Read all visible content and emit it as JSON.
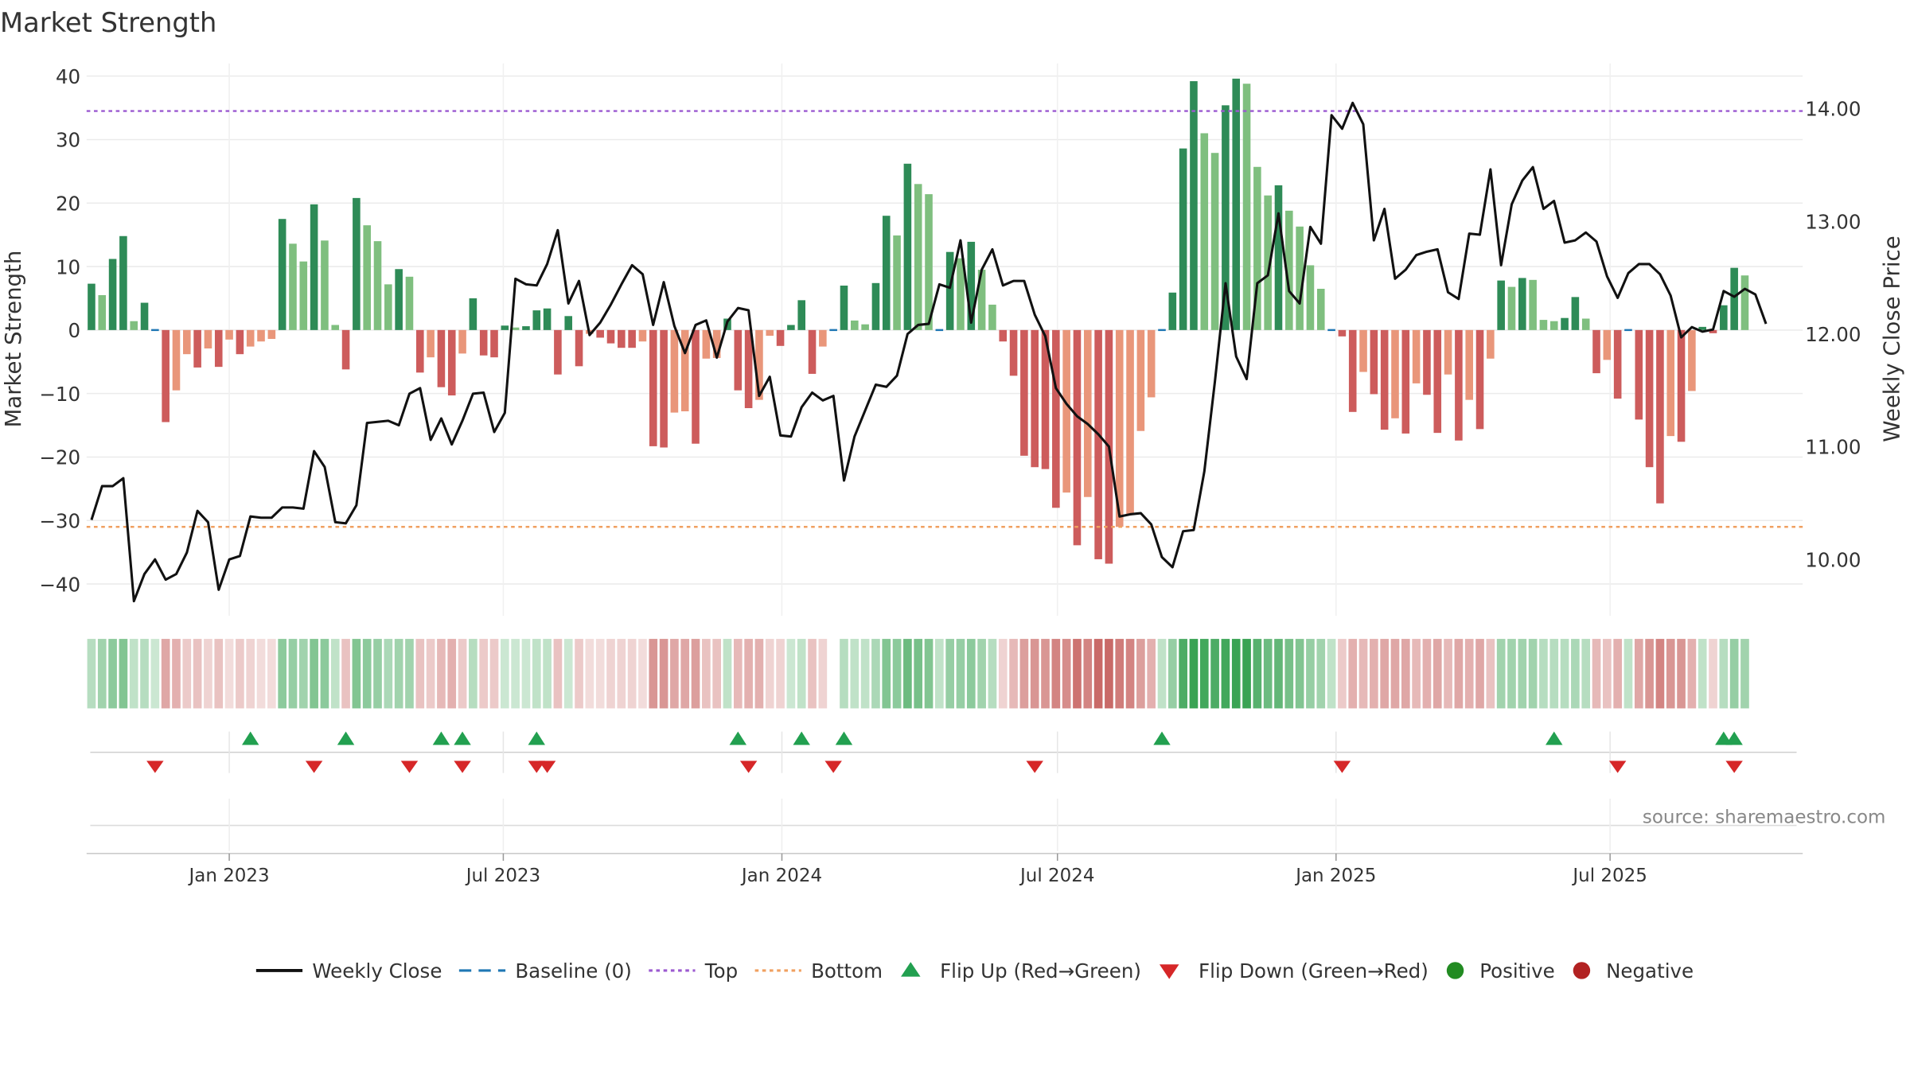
{
  "title": "Market Strength",
  "source": "source: sharemaestro.com",
  "chart_data": {
    "type": "bar",
    "title": "Market Strength",
    "ylabel": "Market Strength",
    "y2label": "Weekly Close Price",
    "ylim": [
      -45,
      42
    ],
    "y2lim": [
      9.5,
      14.4
    ],
    "yticks": [
      "40",
      "30",
      "20",
      "10",
      "0",
      "−10",
      "−20",
      "−30",
      "−40"
    ],
    "y2ticks": [
      "14.00",
      "13.00",
      "12.00",
      "11.00",
      "10.00"
    ],
    "xticks": [
      "Jan 2023",
      "Jul 2023",
      "Jan 2024",
      "Jul 2024",
      "Jan 2025",
      "Jul 2025"
    ],
    "x_start": "2022-10-02",
    "weeks": 162,
    "thresholds": {
      "top": 34.5,
      "bottom": -31,
      "baseline": 0
    },
    "strength": [
      7.3,
      5.5,
      11.2,
      14.8,
      1.4,
      4.3,
      0,
      -14.5,
      -9.5,
      -3.8,
      -5.9,
      -2.9,
      -5.8,
      -1.5,
      -3.8,
      -2.6,
      -1.8,
      -1.4,
      17.5,
      13.6,
      10.8,
      19.8,
      14.1,
      0.8,
      -6.2,
      20.8,
      16.5,
      14.0,
      7.2,
      9.6,
      8.4,
      -6.7,
      -4.3,
      -9.0,
      -10.3,
      -3.7,
      5.0,
      -4.0,
      -4.3,
      0.7,
      0.4,
      0.6,
      3.1,
      3.4,
      -7.0,
      2.2,
      -5.7,
      -0.6,
      -1.2,
      -2.1,
      -2.8,
      -2.8,
      -1.8,
      -18.3,
      -18.5,
      -13.0,
      -12.8,
      -17.9,
      -4.5,
      -4.4,
      1.8,
      -9.5,
      -12.3,
      -11.0,
      -0.9,
      -2.5,
      0.8,
      4.7,
      -6.9,
      -2.6,
      0,
      7.0,
      1.5,
      0.9,
      7.4,
      18.0,
      14.9,
      26.2,
      23.0,
      21.4,
      0,
      12.3,
      11.3,
      13.9,
      9.5,
      4.0,
      -1.8,
      -7.2,
      -19.8,
      -21.6,
      -21.9,
      -28.0,
      -25.6,
      -33.9,
      -26.3,
      -36.1,
      -36.8,
      -31.0,
      -29.1,
      -15.9,
      -10.6,
      0,
      5.9,
      28.6,
      39.2,
      31.0,
      27.9,
      35.4,
      39.6,
      38.8,
      25.7,
      21.2,
      22.8,
      18.8,
      16.3,
      10.2,
      6.5,
      0,
      -1.0,
      -12.9,
      -6.6,
      -10.1,
      -15.7,
      -13.9,
      -16.3,
      -8.4,
      -10.2,
      -16.2,
      -7.0,
      -17.4,
      -11.0,
      -15.6,
      -4.5,
      7.8,
      6.8,
      8.2,
      7.9,
      1.6,
      1.4,
      1.9,
      5.2,
      1.8,
      -6.8,
      -4.7,
      -10.8,
      0,
      -14.1,
      -21.6,
      -27.3,
      -16.7,
      -17.6,
      -9.6,
      0.5,
      -0.5,
      3.9,
      9.8,
      8.6
    ],
    "weekly_close": [
      10.35,
      10.65,
      10.65,
      10.72,
      9.63,
      9.87,
      10.0,
      9.82,
      9.87,
      10.06,
      10.43,
      10.33,
      9.73,
      10.0,
      10.03,
      10.38,
      10.37,
      10.37,
      10.46,
      10.46,
      10.45,
      10.96,
      10.82,
      10.33,
      10.32,
      10.48,
      11.21,
      11.22,
      11.23,
      11.19,
      11.47,
      11.52,
      11.06,
      11.25,
      11.02,
      11.23,
      11.47,
      11.48,
      11.13,
      11.3,
      12.49,
      12.44,
      12.43,
      12.62,
      12.92,
      12.27,
      12.47,
      11.99,
      12.1,
      12.26,
      12.44,
      12.61,
      12.53,
      12.08,
      12.46,
      12.07,
      11.83,
      12.08,
      12.12,
      11.79,
      12.11,
      12.23,
      12.21,
      11.45,
      11.62,
      11.1,
      11.09,
      11.35,
      11.48,
      11.41,
      11.45,
      10.7,
      11.09,
      11.32,
      11.55,
      11.53,
      11.63,
      12.0,
      12.08,
      12.09,
      12.44,
      12.41,
      12.83,
      12.1,
      12.57,
      12.75,
      12.43,
      12.47,
      12.47,
      12.17,
      11.98,
      11.52,
      11.38,
      11.27,
      11.2,
      11.11,
      11.0,
      10.38,
      10.4,
      10.41,
      10.31,
      10.02,
      9.93,
      10.25,
      10.26,
      10.78,
      11.58,
      12.45,
      11.8,
      11.6,
      12.45,
      12.52,
      13.07,
      12.38,
      12.27,
      12.95,
      12.8,
      13.94,
      13.82,
      14.05,
      13.86,
      12.83,
      13.11,
      12.49,
      12.57,
      12.7,
      12.73,
      12.75,
      12.37,
      12.31,
      12.89,
      12.88,
      13.46,
      12.61,
      13.15,
      13.36,
      13.48,
      13.11,
      13.18,
      12.81,
      12.83,
      12.9,
      12.82,
      12.51,
      12.32,
      12.54,
      12.62,
      12.62,
      12.53,
      12.34,
      11.97,
      12.06,
      12.02,
      12.04,
      12.38,
      12.33,
      12.4,
      12.35,
      12.09
    ],
    "panel_opacity": [
      0.35,
      0.45,
      0.55,
      0.6,
      0.3,
      0.35,
      0.25,
      0.5,
      0.45,
      0.3,
      0.35,
      0.25,
      0.35,
      0.2,
      0.3,
      0.25,
      0.2,
      0.2,
      0.55,
      0.5,
      0.45,
      0.6,
      0.55,
      0.3,
      0.35,
      0.6,
      0.55,
      0.5,
      0.4,
      0.45,
      0.45,
      0.35,
      0.3,
      0.4,
      0.45,
      0.3,
      0.35,
      0.3,
      0.3,
      0.25,
      0.25,
      0.25,
      0.3,
      0.3,
      0.35,
      0.25,
      0.3,
      0.2,
      0.2,
      0.25,
      0.25,
      0.25,
      0.2,
      0.6,
      0.6,
      0.5,
      0.5,
      0.55,
      0.35,
      0.35,
      0.3,
      0.4,
      0.45,
      0.45,
      0.25,
      0.25,
      0.25,
      0.3,
      0.35,
      0.25,
      0.0,
      0.35,
      0.3,
      0.3,
      0.4,
      0.6,
      0.55,
      0.7,
      0.65,
      0.6,
      0.3,
      0.5,
      0.5,
      0.55,
      0.45,
      0.35,
      0.25,
      0.4,
      0.55,
      0.6,
      0.6,
      0.7,
      0.65,
      0.8,
      0.7,
      0.85,
      0.85,
      0.75,
      0.7,
      0.55,
      0.45,
      0.3,
      0.5,
      0.85,
      0.95,
      0.9,
      0.85,
      0.9,
      0.95,
      0.95,
      0.8,
      0.7,
      0.75,
      0.65,
      0.6,
      0.5,
      0.45,
      0.3,
      0.3,
      0.45,
      0.4,
      0.45,
      0.5,
      0.5,
      0.5,
      0.4,
      0.45,
      0.5,
      0.4,
      0.5,
      0.45,
      0.5,
      0.35,
      0.45,
      0.45,
      0.45,
      0.45,
      0.35,
      0.35,
      0.35,
      0.4,
      0.35,
      0.4,
      0.35,
      0.45,
      0.3,
      0.5,
      0.6,
      0.7,
      0.6,
      0.6,
      0.45,
      0.3,
      0.25,
      0.35,
      0.5,
      0.45
    ],
    "flip_up": [
      "2023-01-15",
      "2023-03-19",
      "2023-05-21",
      "2023-06-04",
      "2023-07-23",
      "2023-12-03",
      "2024-01-14",
      "2024-02-11",
      "2024-09-08",
      "2025-05-25",
      "2025-09-14",
      "2025-09-21"
    ],
    "flip_down": [
      "2022-11-13",
      "2023-02-26",
      "2023-04-30",
      "2023-06-04",
      "2023-07-23",
      "2023-07-30",
      "2023-12-10",
      "2024-02-04",
      "2024-06-16",
      "2025-01-05",
      "2025-07-06",
      "2025-09-21"
    ],
    "colors": {
      "pos_dark": "#2e8b57",
      "pos_light": "#7fbf7f",
      "neg_dark": "#cd5c5c",
      "neg_light": "#e9967a",
      "line": "#111111",
      "top": "#9b59d0",
      "bottom": "#f0a060",
      "baseline": "#1f77b4",
      "flip_up": "#22a050",
      "flip_down": "#d62728",
      "positive": "#228b22",
      "negative": "#b22222"
    },
    "legend": [
      {
        "label": "Weekly Close",
        "kind": "line"
      },
      {
        "label": "Baseline (0)",
        "kind": "dash"
      },
      {
        "label": "Top",
        "kind": "dot-purple"
      },
      {
        "label": "Bottom",
        "kind": "dot-orange"
      },
      {
        "label": "Flip Up (Red→Green)",
        "kind": "tri-up"
      },
      {
        "label": "Flip Down (Green→Red)",
        "kind": "tri-down"
      },
      {
        "label": "Positive",
        "kind": "circle-pos"
      },
      {
        "label": "Negative",
        "kind": "circle-neg"
      }
    ]
  }
}
